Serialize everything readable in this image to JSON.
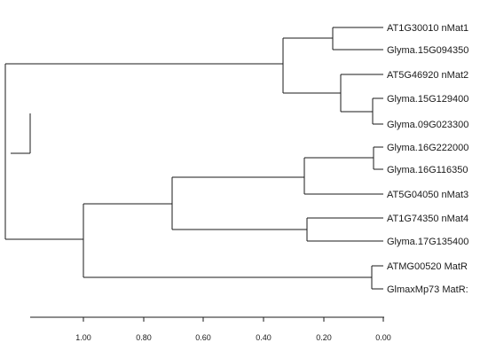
{
  "tree": {
    "leaves": [
      "AT1G30010 nMat1",
      "Glyma.15G094350",
      "AT5G46920 nMat2",
      "Glyma.15G129400",
      "Glyma.09G023300",
      "Glyma.16G222000",
      "Glyma.16G116350",
      "AT5G04050 nMat3",
      "AT1G74350 nMat4",
      "Glyma.17G135400",
      "ATMG00520 MatR",
      "GlmaxMp73 MatR:"
    ]
  },
  "axis": {
    "ticks": [
      "1.00",
      "0.80",
      "0.60",
      "0.40",
      "0.20",
      "0.00"
    ]
  }
}
